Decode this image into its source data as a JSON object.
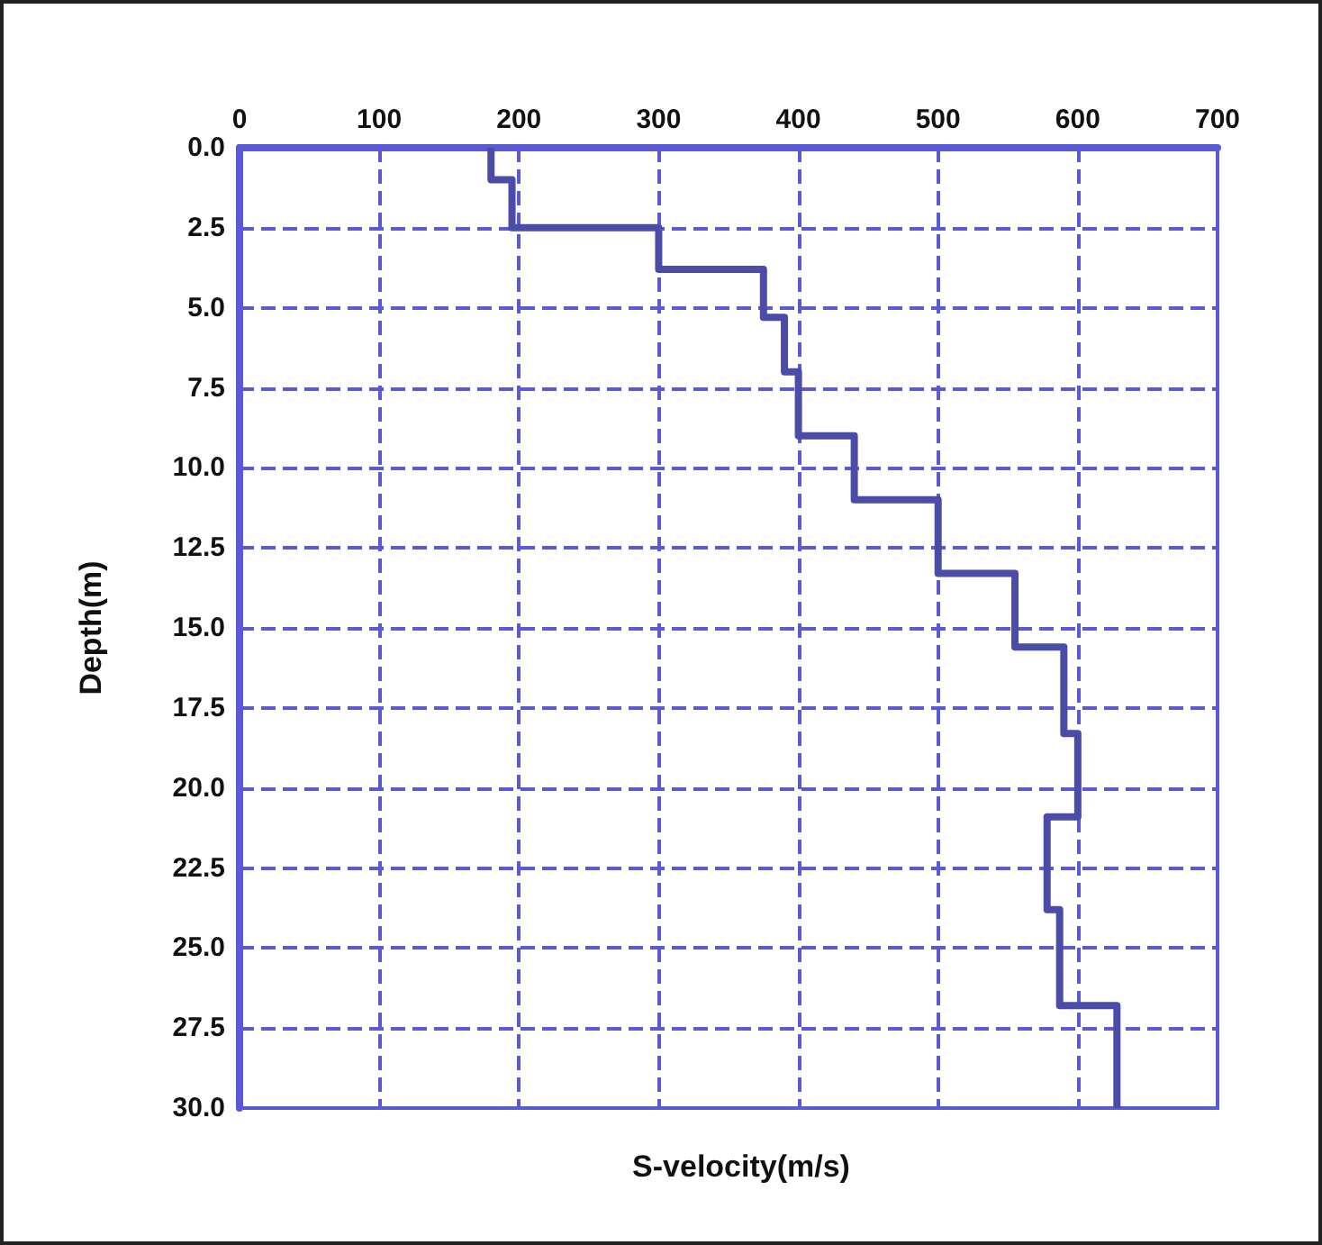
{
  "chart_data": {
    "type": "line",
    "xlabel": "S-velocity(m/s)",
    "ylabel": "Depth(m)",
    "x": [
      180,
      180,
      195,
      195,
      300,
      300,
      375,
      375,
      390,
      390,
      400,
      400,
      440,
      440,
      500,
      500,
      555,
      555,
      590,
      590,
      600,
      600,
      578,
      578,
      587,
      587,
      628,
      628
    ],
    "values": [
      0,
      1.0,
      1.0,
      2.5,
      2.5,
      3.8,
      3.8,
      5.3,
      5.3,
      7.0,
      7.0,
      9.0,
      9.0,
      11.0,
      11.0,
      13.3,
      13.3,
      15.6,
      15.6,
      18.3,
      18.3,
      20.9,
      20.9,
      23.8,
      23.8,
      26.8,
      26.8,
      30
    ],
    "color": "#4b4ba8",
    "xlim": [
      0,
      700
    ],
    "xticks": [
      0,
      100,
      200,
      300,
      400,
      500,
      600,
      700
    ],
    "ylim": [
      30,
      0
    ],
    "yticks": [
      {
        "value": 0,
        "label": "0.0"
      },
      2.5,
      {
        "value": 5,
        "label": "5.0"
      },
      7.5,
      {
        "value": 10,
        "label": "10.0"
      },
      12.5,
      {
        "value": 15,
        "label": "15.0"
      },
      17.5,
      {
        "value": 20,
        "label": "20.0"
      },
      22.5,
      {
        "value": 25,
        "label": "25.0"
      },
      27.5,
      {
        "value": 30,
        "label": "30.0"
      }
    ],
    "grid": true,
    "marker": "none",
    "line_style": "solid"
  }
}
